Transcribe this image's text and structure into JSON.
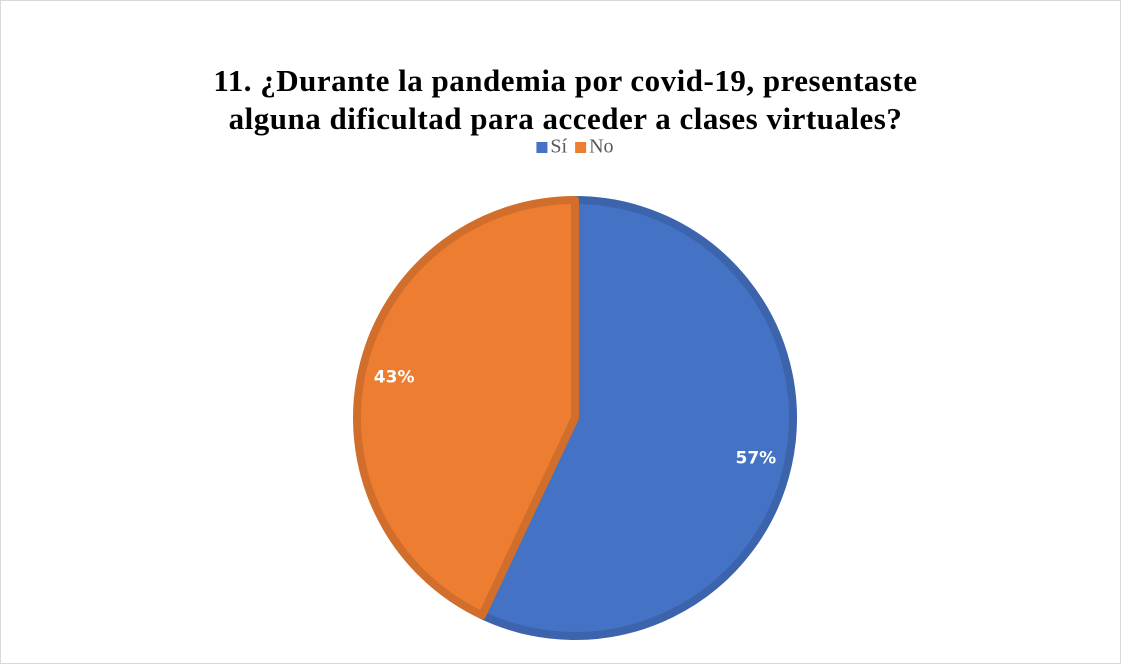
{
  "chart_data": {
    "type": "pie",
    "title": "11. ¿Durante la pandemia por covid-19, presentaste alguna dificultad para acceder a clases virtuales?",
    "categories": [
      "Sí",
      "No"
    ],
    "values": [
      57,
      43
    ],
    "value_labels": [
      "57%",
      "43%"
    ],
    "colors": [
      "#4472c4",
      "#ed7d31"
    ],
    "legend": "top"
  }
}
